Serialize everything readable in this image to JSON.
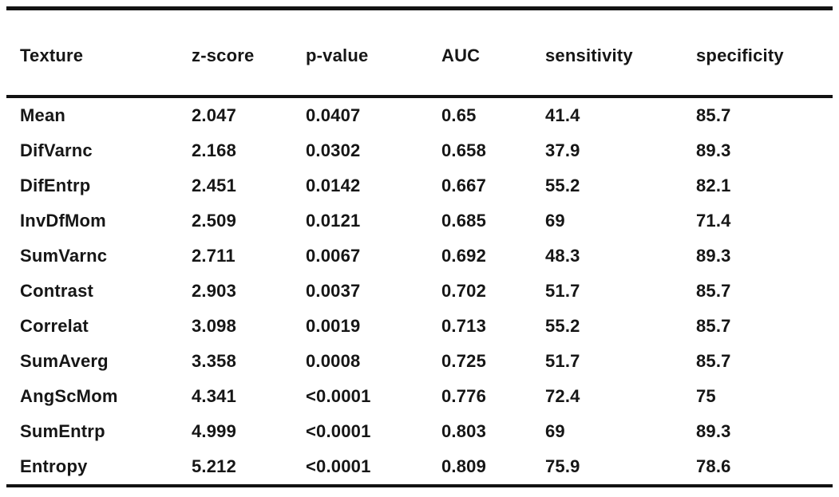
{
  "colors": {
    "background": "#ffffff",
    "text": "#161616",
    "rule": "#121212"
  },
  "chart_data": {
    "type": "table",
    "columns": [
      "Texture",
      "z-score",
      "p-value",
      "AUC",
      "sensitivity",
      "specificity"
    ],
    "column_keys": [
      "texture",
      "z-score",
      "p-value",
      "auc",
      "sensitivity",
      "specificity"
    ],
    "rows": [
      [
        "Mean",
        "2.047",
        "0.0407",
        "0.65",
        "41.4",
        "85.7"
      ],
      [
        "DifVarnc",
        "2.168",
        "0.0302",
        "0.658",
        "37.9",
        "89.3"
      ],
      [
        "DifEntrp",
        "2.451",
        "0.0142",
        "0.667",
        "55.2",
        "82.1"
      ],
      [
        "InvDfMom",
        "2.509",
        "0.0121",
        "0.685",
        "69",
        "71.4"
      ],
      [
        "SumVarnc",
        "2.711",
        "0.0067",
        "0.692",
        "48.3",
        "89.3"
      ],
      [
        "Contrast",
        "2.903",
        "0.0037",
        "0.702",
        "51.7",
        "85.7"
      ],
      [
        "Correlat",
        "3.098",
        "0.0019",
        "0.713",
        "55.2",
        "85.7"
      ],
      [
        "SumAverg",
        "3.358",
        "0.0008",
        "0.725",
        "51.7",
        "85.7"
      ],
      [
        "AngScMom",
        "4.341",
        "<0.0001",
        "0.776",
        "72.4",
        "75"
      ],
      [
        "SumEntrp",
        "4.999",
        "<0.0001",
        "0.803",
        "69",
        "89.3"
      ],
      [
        "Entropy",
        "5.212",
        "<0.0001",
        "0.809",
        "75.9",
        "78.6"
      ]
    ],
    "title": "",
    "layout": {
      "grid": "horizontal-rules-only",
      "alignment": "left"
    }
  }
}
